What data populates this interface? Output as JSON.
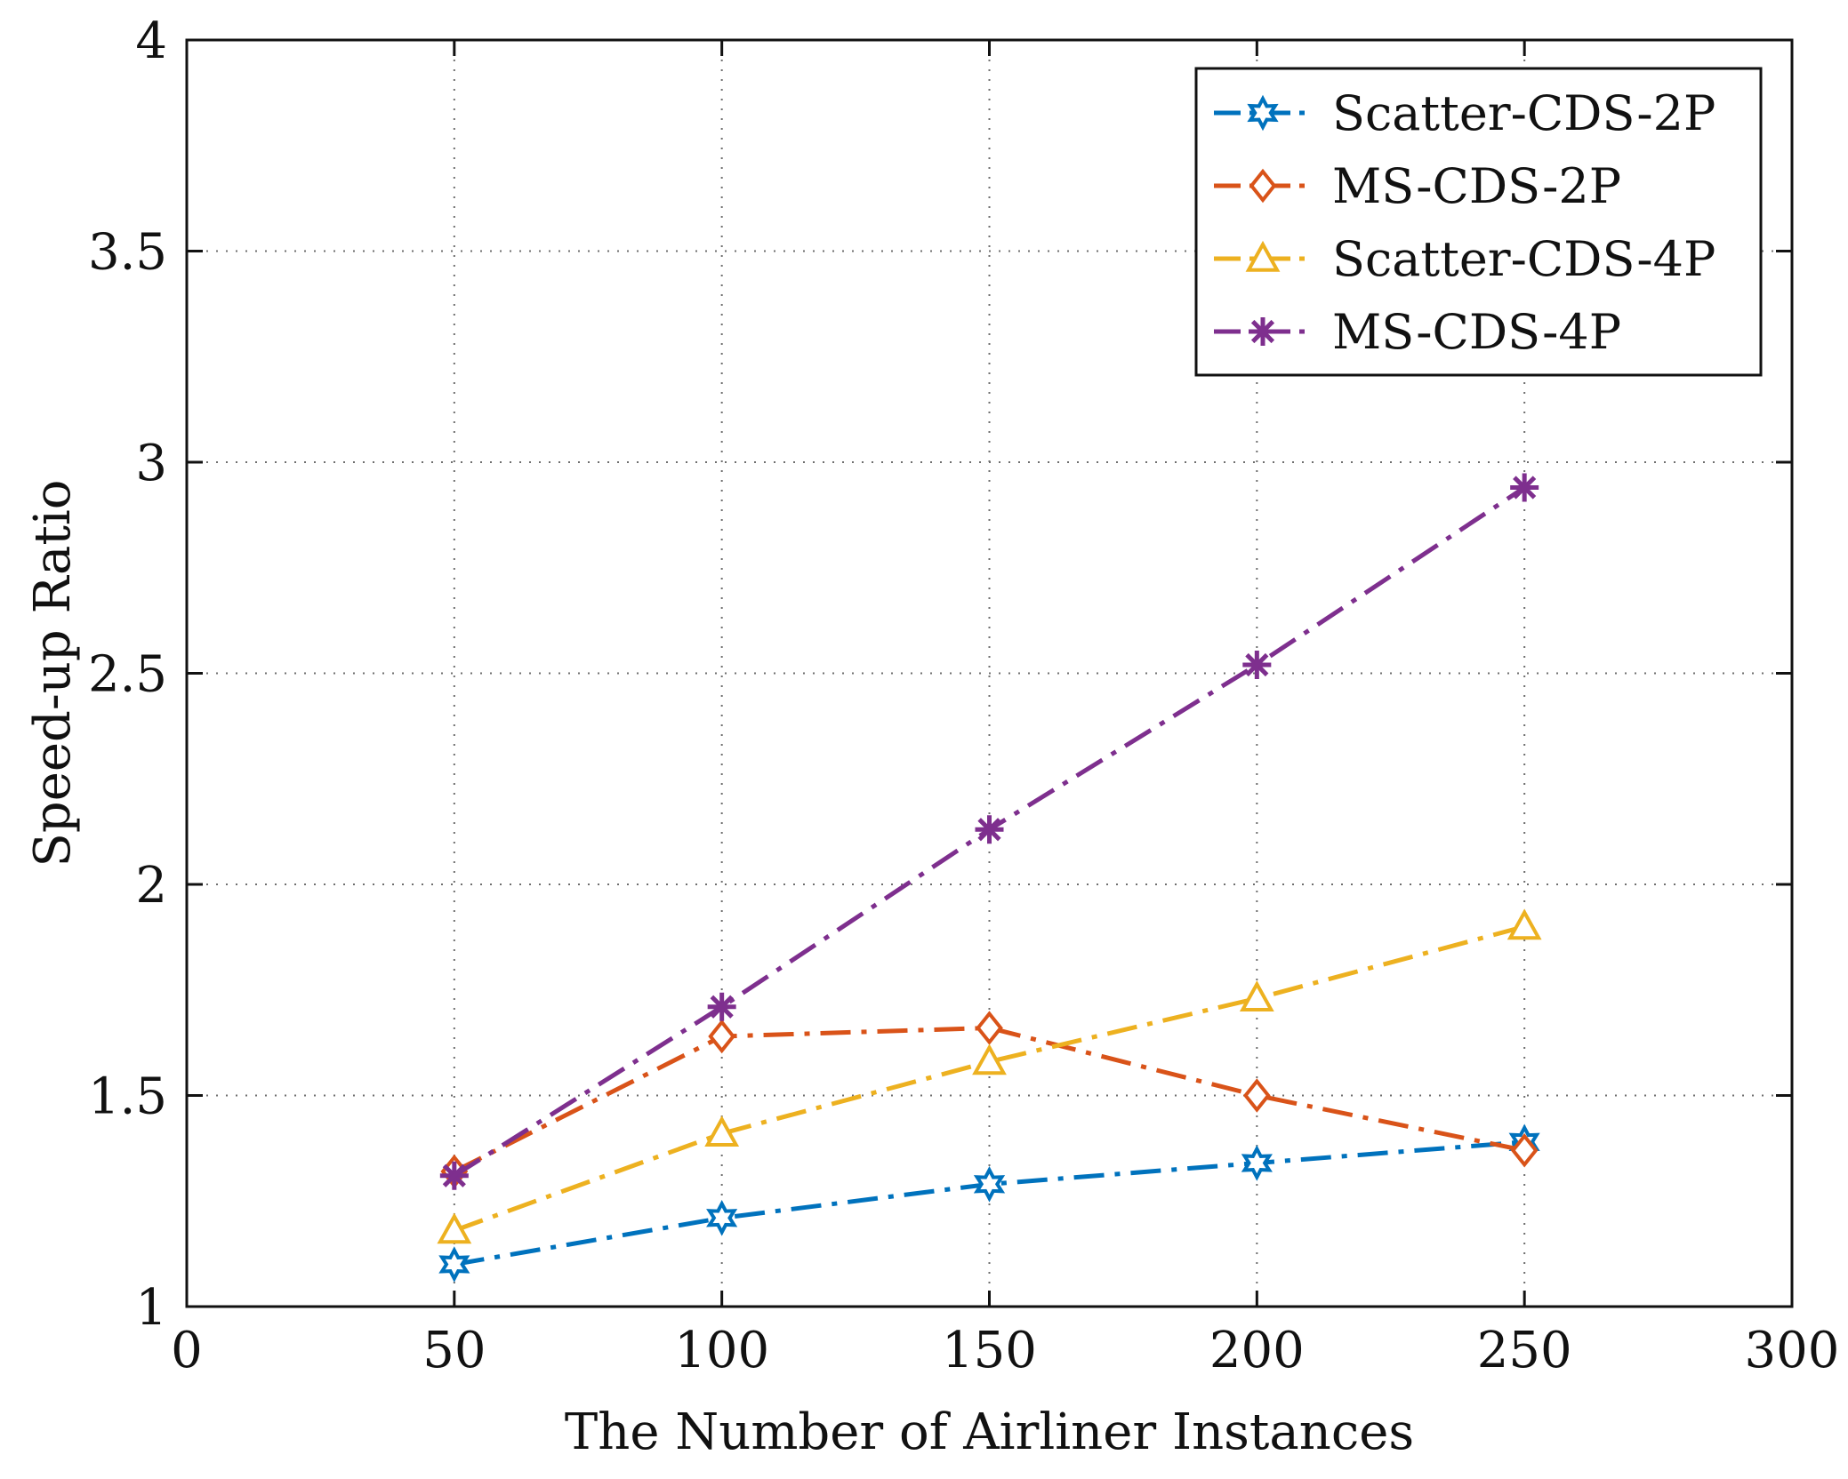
{
  "chart_data": {
    "type": "line",
    "title": "",
    "xlabel": "The Number of Airliner Instances",
    "ylabel": "Speed-up Ratio",
    "xlim": [
      0,
      300
    ],
    "ylim": [
      1,
      4
    ],
    "xticks": [
      0,
      50,
      100,
      150,
      200,
      250,
      300
    ],
    "yticks": [
      1,
      1.5,
      2,
      2.5,
      3,
      3.5,
      4
    ],
    "xtick_labels": [
      "0",
      "50",
      "100",
      "150",
      "200",
      "250",
      "300"
    ],
    "ytick_labels": [
      "1",
      "1.5",
      "2",
      "2.5",
      "3",
      "3.5",
      "4"
    ],
    "grid": true,
    "legend_position": "top-right",
    "x": [
      50,
      100,
      150,
      200,
      250
    ],
    "series": [
      {
        "name": "Scatter-CDS-2P",
        "values": [
          1.1,
          1.21,
          1.29,
          1.34,
          1.39
        ],
        "color": "#0072BD",
        "marker": "hexagram",
        "line_style": "dash-dot"
      },
      {
        "name": "MS-CDS-2P",
        "values": [
          1.32,
          1.64,
          1.66,
          1.5,
          1.37
        ],
        "color": "#D95319",
        "marker": "diamond",
        "line_style": "dash-dot"
      },
      {
        "name": "Scatter-CDS-4P",
        "values": [
          1.18,
          1.41,
          1.58,
          1.73,
          1.9
        ],
        "color": "#EDB120",
        "marker": "triangle",
        "line_style": "dash-dot"
      },
      {
        "name": "MS-CDS-4P",
        "values": [
          1.31,
          1.71,
          2.13,
          2.52,
          2.94
        ],
        "color": "#7E2F8E",
        "marker": "asterisk",
        "line_style": "dash-dot"
      }
    ]
  }
}
